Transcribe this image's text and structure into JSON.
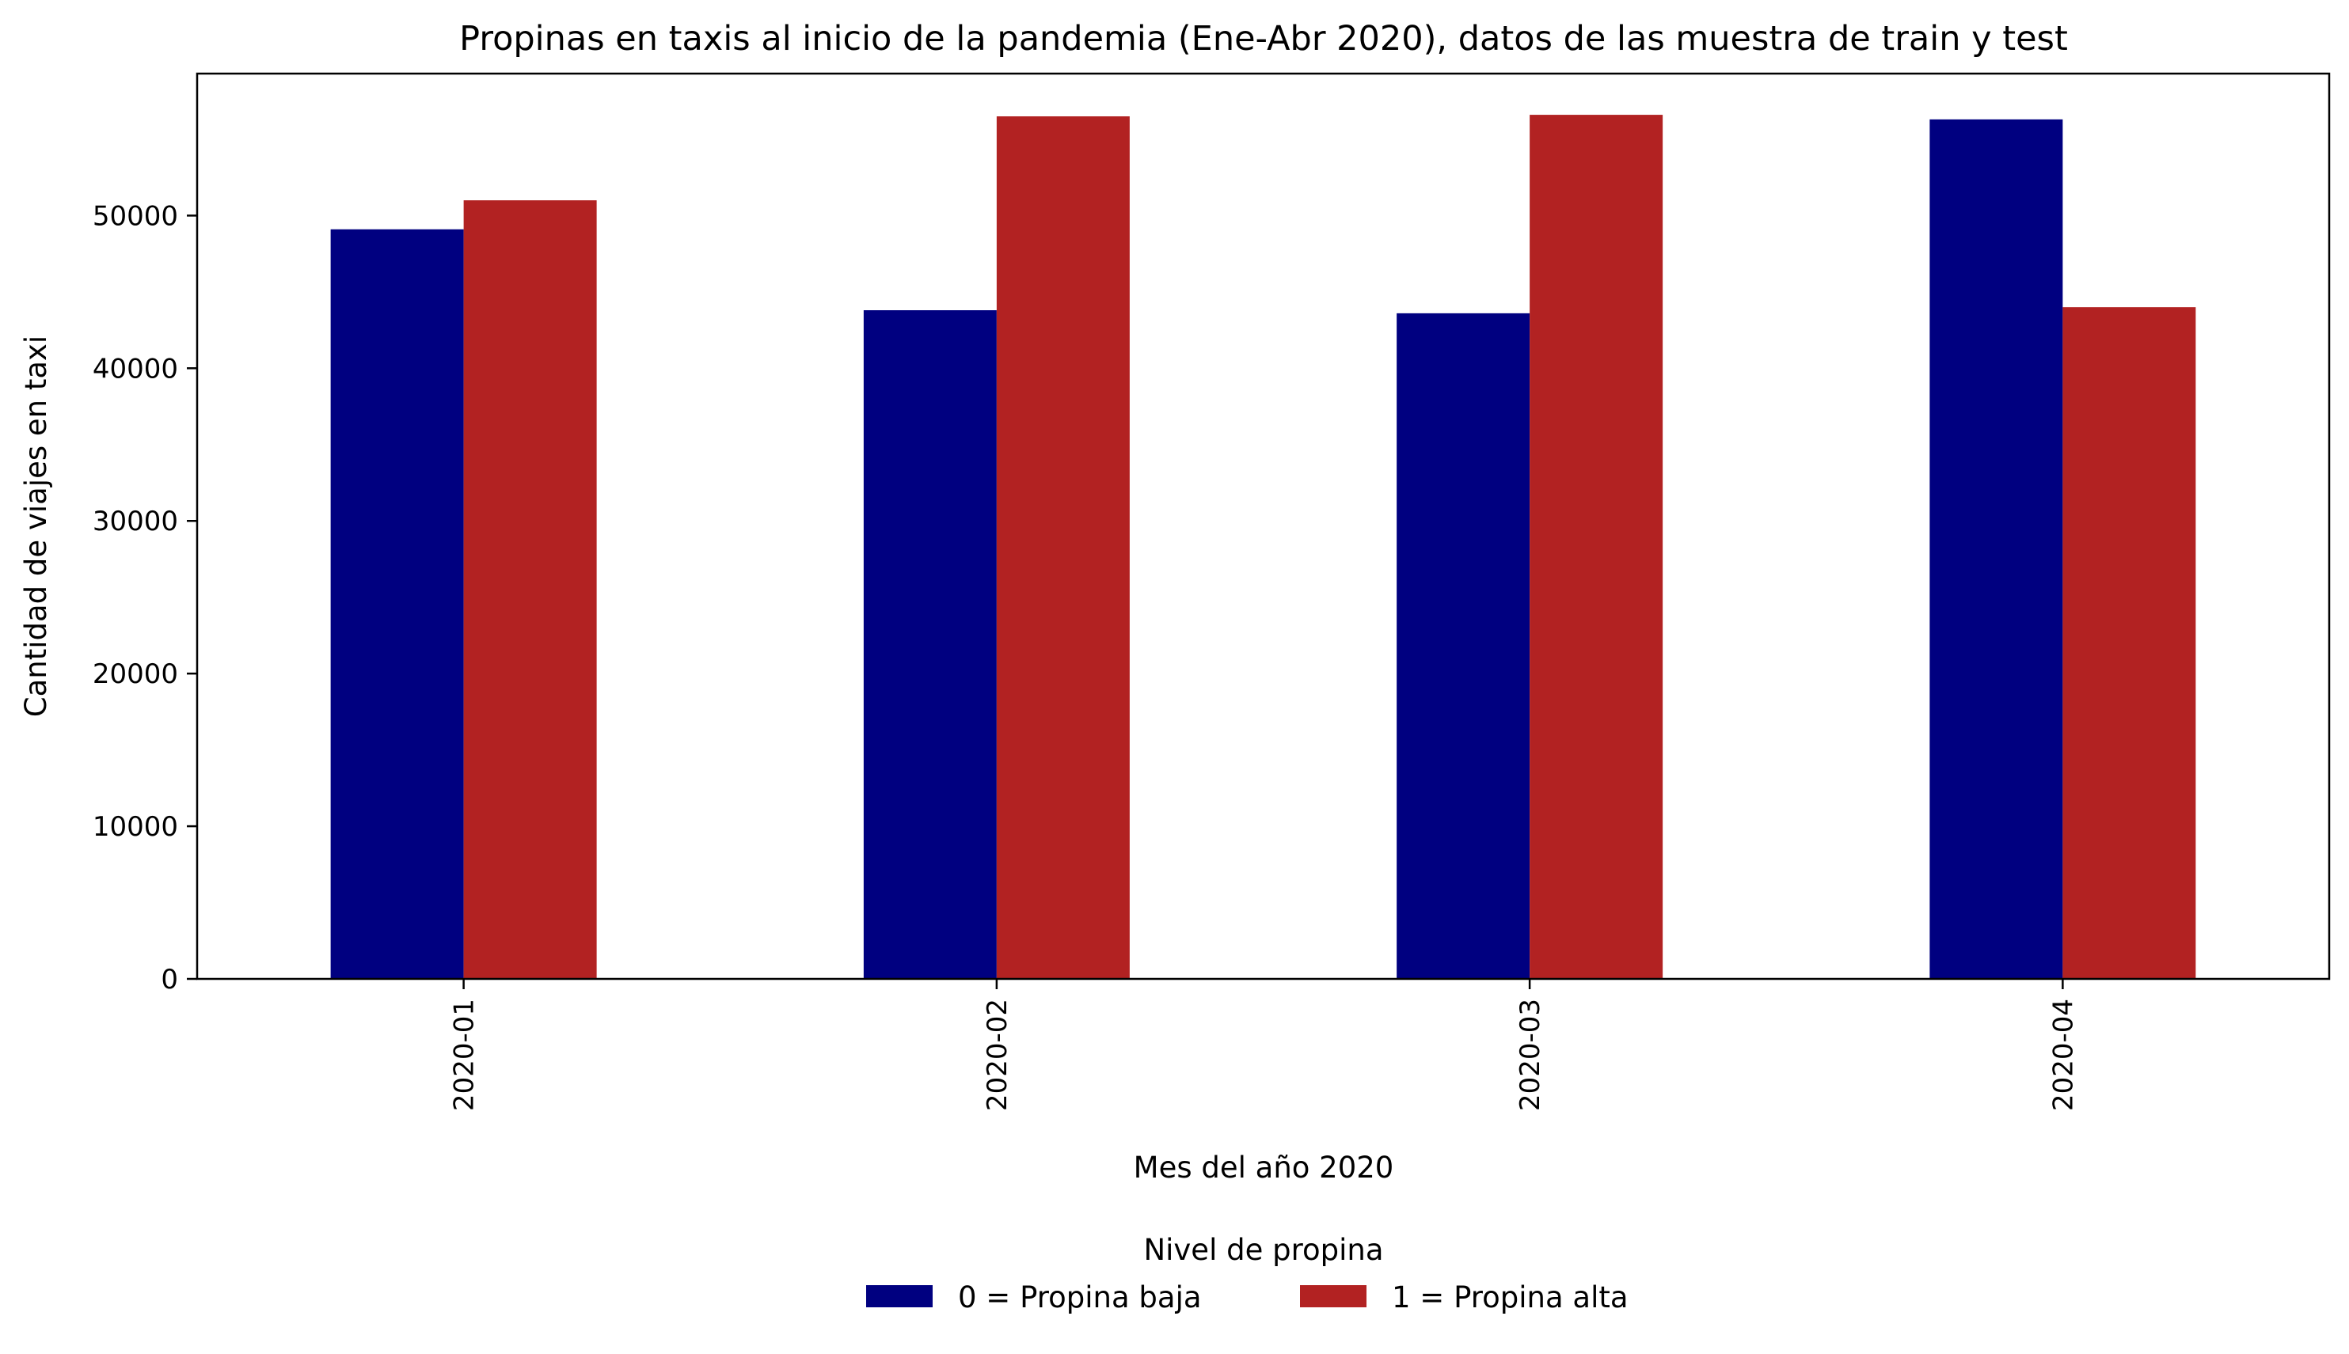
{
  "chart_data": {
    "type": "bar",
    "title": "Propinas en taxis al inicio de la pandemia (Ene-Abr 2020), datos de las muestra de train y test",
    "xlabel": "Mes del año 2020",
    "ylabel": "Cantidad de viajes en taxi",
    "categories": [
      "2020-01",
      "2020-02",
      "2020-03",
      "2020-04"
    ],
    "series": [
      {
        "name": "0 = Propina baja",
        "color": "#000080",
        "values": [
          49100,
          43800,
          43600,
          56300
        ]
      },
      {
        "name": "1 = Propina alta",
        "color": "#b22222",
        "values": [
          51000,
          56500,
          56600,
          44000
        ]
      }
    ],
    "ylim": [
      0,
      59300
    ],
    "yticks": [
      0,
      10000,
      20000,
      30000,
      40000,
      50000
    ],
    "ytick_labels": [
      "0",
      "10000",
      "20000",
      "30000",
      "40000",
      "50000"
    ],
    "grid": false,
    "legend": {
      "title": "Nivel de propina",
      "placement": "bottom-center",
      "entries": [
        "0 = Propina baja",
        "1 = Propina alta"
      ]
    }
  }
}
